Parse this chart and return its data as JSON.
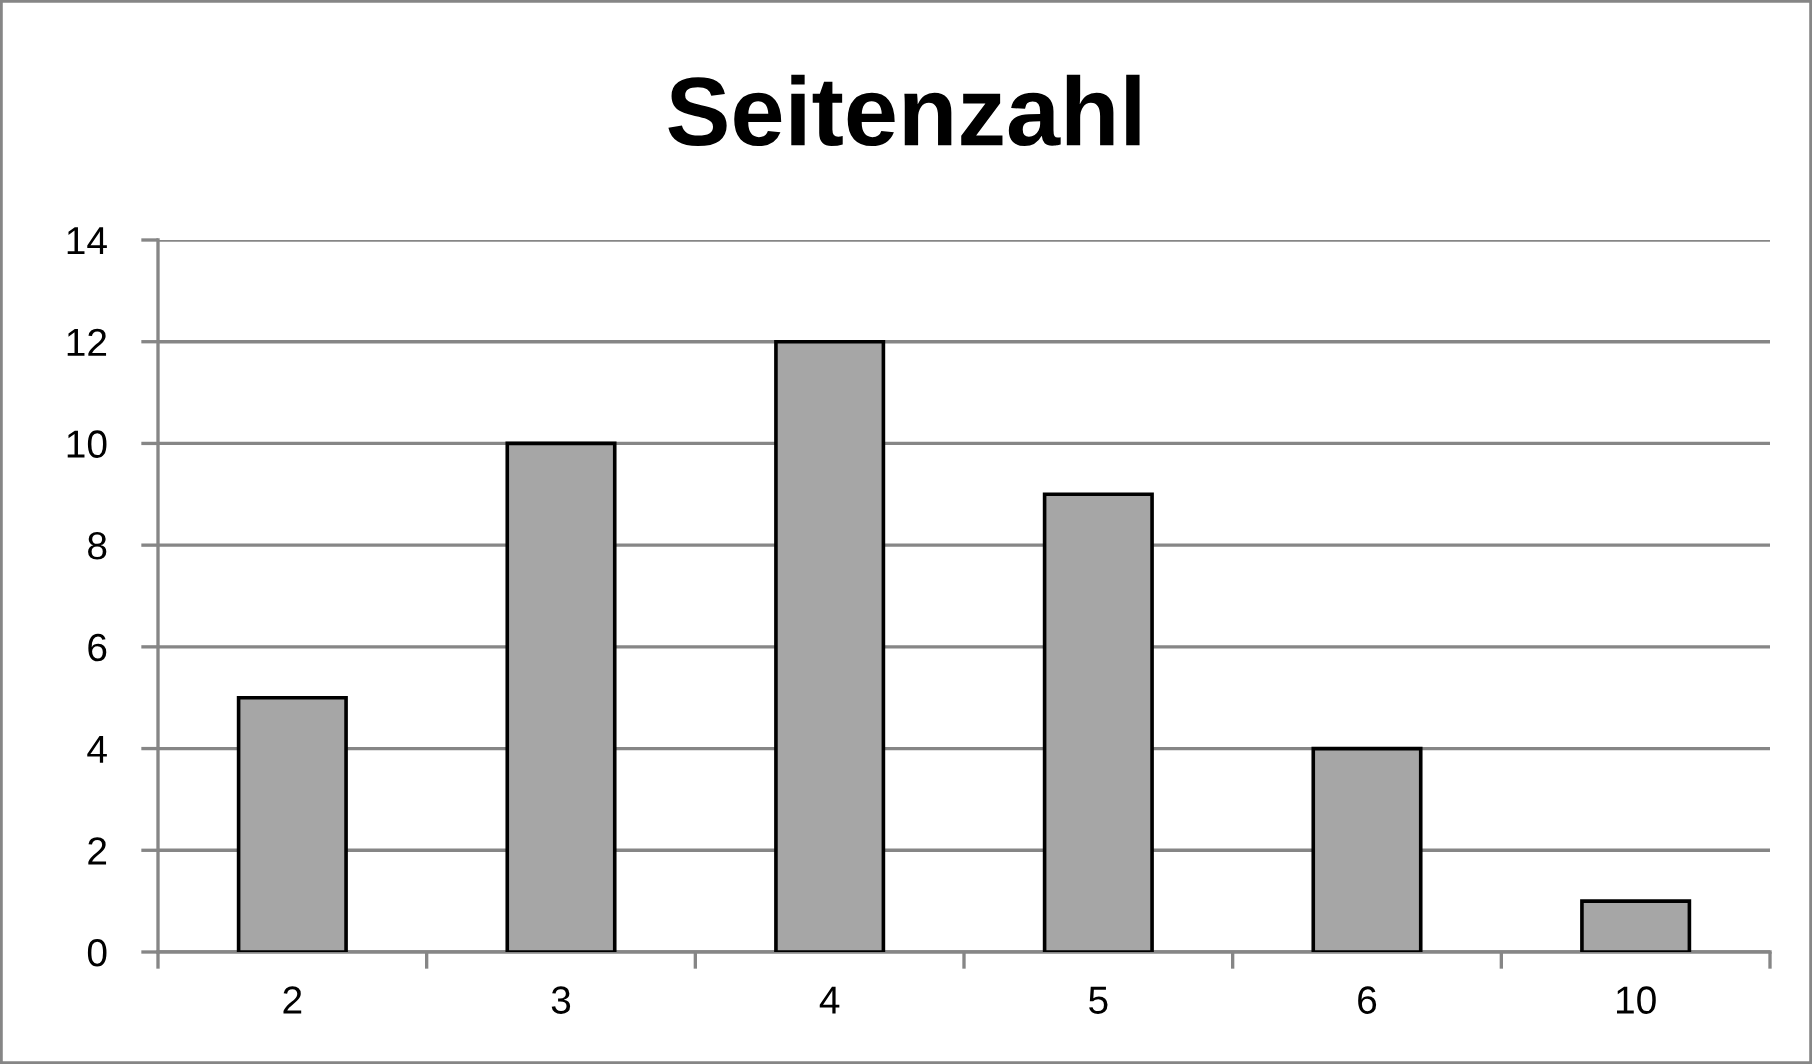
{
  "chart_data": {
    "type": "bar",
    "title": "Seitenzahl",
    "categories": [
      "2",
      "3",
      "4",
      "5",
      "6",
      "10"
    ],
    "values": [
      5,
      10,
      12,
      9,
      4,
      1
    ],
    "color": "#a6a6a6",
    "ylim": [
      0,
      14
    ],
    "yticks": [
      0,
      2,
      4,
      6,
      8,
      10,
      12,
      14
    ],
    "grid": "y"
  }
}
